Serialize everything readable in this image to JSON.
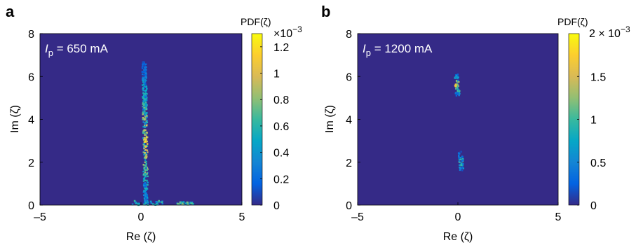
{
  "chart_data": [
    {
      "type": "heatmap",
      "panel_label": "a",
      "annotation": {
        "symbol": "I",
        "subscript": "p",
        "text": " = 650 mA"
      },
      "xlabel": "Re (ζ)",
      "ylabel": "Im (ζ)",
      "xlim": [
        -5,
        5
      ],
      "ylim": [
        0,
        8
      ],
      "xticks": [
        "–5",
        "0",
        "5"
      ],
      "yticks": [
        "0",
        "2",
        "4",
        "6",
        "8"
      ],
      "colorbar": {
        "title": "PDF(ζ)",
        "multiplier": "×10",
        "exponent": "−3",
        "range": [
          0,
          1.3
        ],
        "ticks": [
          0,
          0.2,
          0.4,
          0.6,
          0.8,
          1,
          1.2
        ],
        "ticklabels": [
          "0",
          "0.2",
          "0.4",
          "0.6",
          "0.8",
          "1",
          "1.2"
        ]
      },
      "colormap": "parula",
      "background_color": "#352a87",
      "features": [
        {
          "kind": "streak",
          "re_center": 0.25,
          "im_range": [
            0.1,
            6.7
          ],
          "peak_value": 1.25,
          "peak_im": 3.0
        },
        {
          "kind": "cluster",
          "re_range": [
            -0.6,
            1.1
          ],
          "im_range": [
            0,
            0.2
          ],
          "peak_value": 0.7
        },
        {
          "kind": "cluster",
          "re_range": [
            1.8,
            2.6
          ],
          "im_range": [
            0,
            0.15
          ],
          "peak_value": 0.9
        }
      ]
    },
    {
      "type": "heatmap",
      "panel_label": "b",
      "annotation": {
        "symbol": "I",
        "subscript": "p",
        "text": " = 1200 mA"
      },
      "xlabel": "Re (ζ)",
      "ylabel": "Im (ζ)",
      "xlim": [
        -5,
        5
      ],
      "ylim": [
        0,
        8
      ],
      "xticks": [
        "–5",
        "0",
        "5"
      ],
      "yticks": [
        "0",
        "2",
        "4",
        "6",
        "8"
      ],
      "colorbar": {
        "title": "PDF(ζ)",
        "multiplier": "2 × 10",
        "exponent": "−3",
        "range": [
          0,
          2
        ],
        "ticks": [
          0,
          0.5,
          1,
          1.5
        ],
        "ticklabels": [
          "0",
          "0.5",
          "1",
          "1.5"
        ]
      },
      "colormap": "parula",
      "background_color": "#352a87",
      "features": [
        {
          "kind": "streak",
          "re_center": 0.0,
          "im_range": [
            5.1,
            6.1
          ],
          "peak_value": 1.9,
          "peak_im": 5.6
        },
        {
          "kind": "streak",
          "re_center": 0.2,
          "im_range": [
            1.6,
            2.5
          ],
          "peak_value": 1.3,
          "peak_im": 2.0
        }
      ]
    }
  ]
}
